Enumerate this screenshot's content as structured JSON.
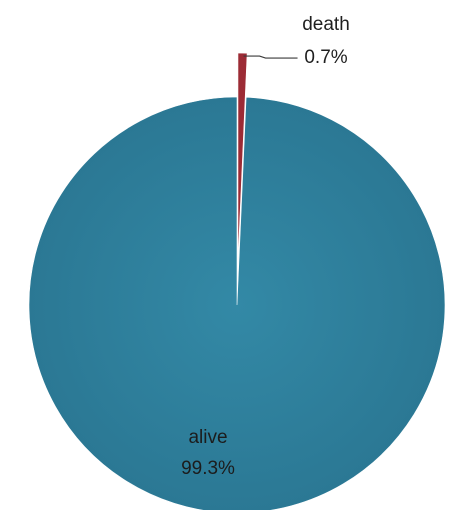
{
  "chart_data": {
    "type": "pie",
    "title": "",
    "slices": [
      {
        "label": "death",
        "value": 0.7,
        "value_label": "0.7%",
        "color": "#9c2b35",
        "exploded": true,
        "label_position": "outside-top-right"
      },
      {
        "label": "alive",
        "value": 99.3,
        "value_label": "99.3%",
        "color": "#2e7d98",
        "exploded": false,
        "label_position": "inside-bottom"
      }
    ],
    "start_angle": "12 o'clock",
    "direction": "clockwise",
    "legend": "none"
  }
}
